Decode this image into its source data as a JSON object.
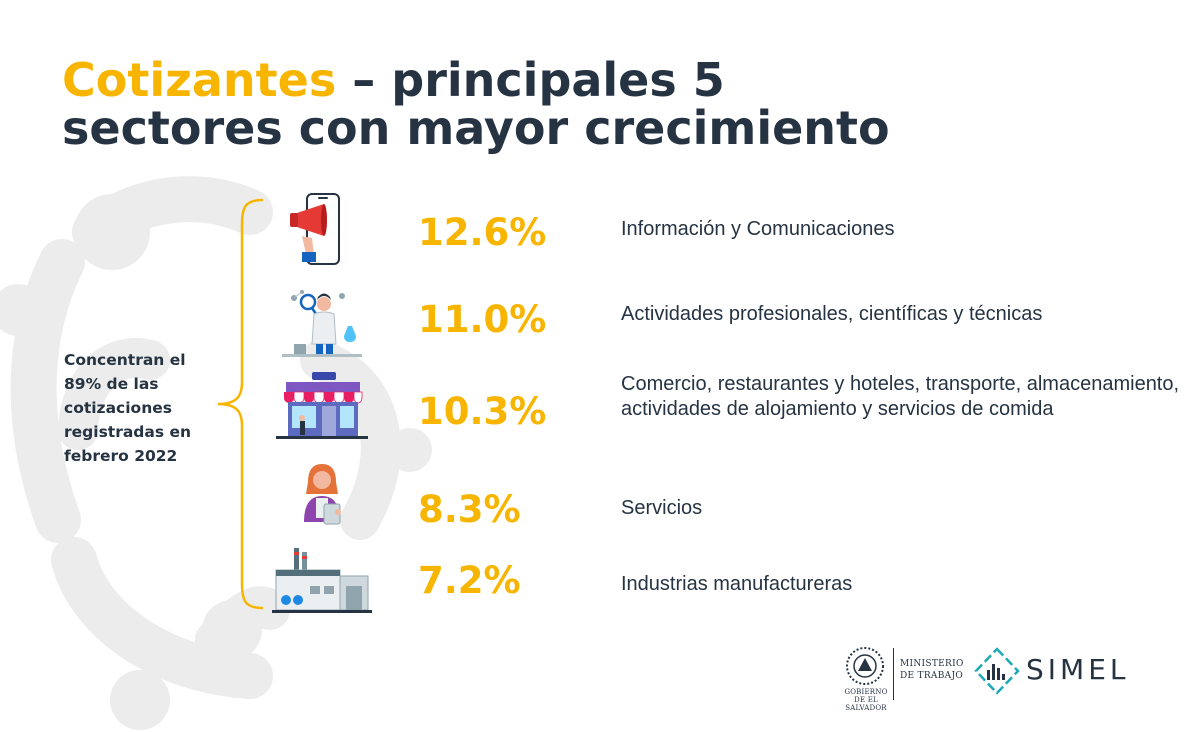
{
  "title": {
    "accent": "Cotizantes",
    "rest_line1": " – principales 5",
    "line2": "sectores con mayor crecimiento"
  },
  "summary": "Concentran el 89% de las cotizaciones registradas en febrero 2022",
  "sectors": [
    {
      "pct": "12.6%",
      "label": "Información y Comunicaciones",
      "icon": "phone-megaphone-icon"
    },
    {
      "pct": "11.0%",
      "label": "Actividades profesionales, científicas y técnicas",
      "icon": "scientist-icon"
    },
    {
      "pct": "10.3%",
      "label": "Comercio, restaurantes y hoteles, transporte, almacenamiento, actividades de alojamiento y servicios de comida",
      "icon": "storefront-icon"
    },
    {
      "pct": "8.3%",
      "label": "Servicios",
      "icon": "service-worker-icon"
    },
    {
      "pct": "7.2%",
      "label": "Industrias manufactureras",
      "icon": "factory-icon"
    }
  ],
  "footer": {
    "gov_name": "GOBIERNO DE EL SALVADOR",
    "ministry": "MINISTERIO DE TRABAJO",
    "brand": "SIMEL"
  },
  "colors": {
    "accent": "#f7b500",
    "text": "#263342",
    "decoration": "#ececec",
    "teal": "#1fa9b4"
  }
}
